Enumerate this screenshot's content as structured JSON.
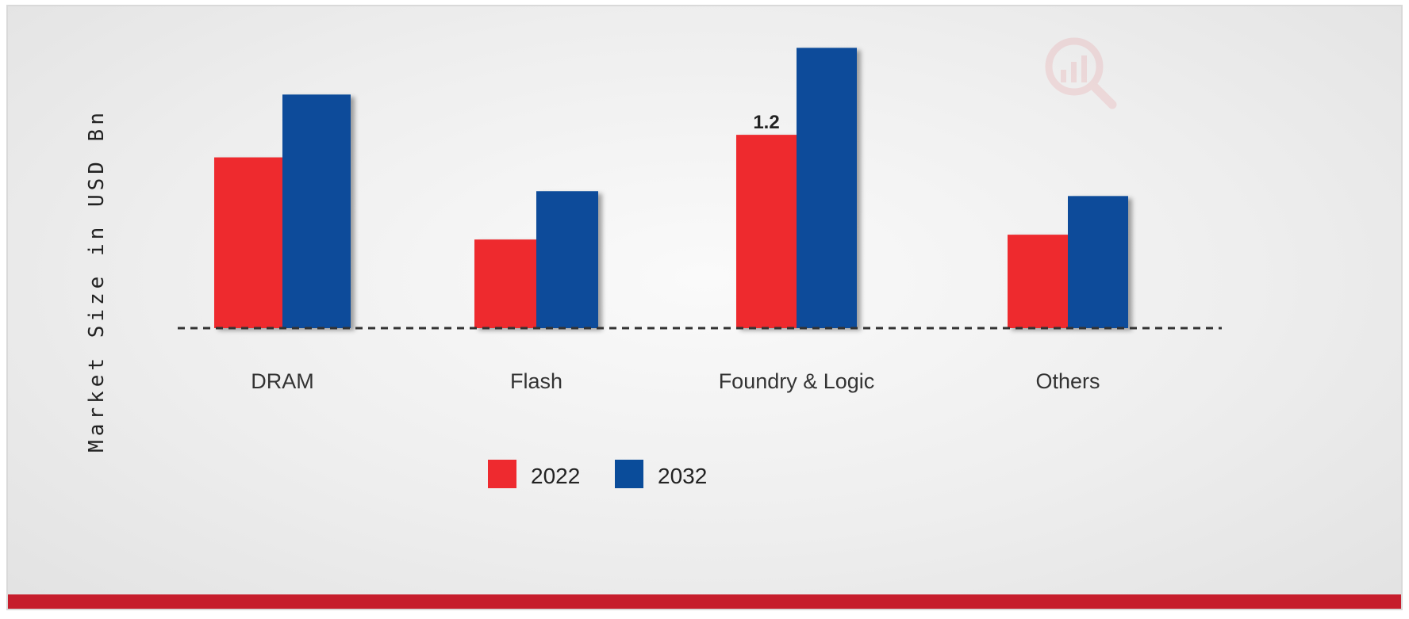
{
  "chart_data": {
    "type": "bar",
    "title": "",
    "xlabel": "",
    "ylabel": "Market Size in USD Bn",
    "categories": [
      "DRAM",
      "Flash",
      "Foundry & Logic",
      "Others"
    ],
    "series": [
      {
        "name": "2022",
        "color": "#ee2a2f",
        "values": [
          1.06,
          0.55,
          1.2,
          0.58
        ]
      },
      {
        "name": "2032",
        "color": "#0a4c9a",
        "values": [
          1.45,
          0.85,
          1.74,
          0.82
        ]
      }
    ],
    "data_labels": [
      {
        "series": 0,
        "category": 2,
        "text": "1.2"
      }
    ],
    "ylim": [
      0,
      1.85
    ],
    "grid": false,
    "baseline_style": "dashed",
    "legend_position": "bottom"
  },
  "logo": {
    "icon": "analytics-magnifier-icon"
  }
}
